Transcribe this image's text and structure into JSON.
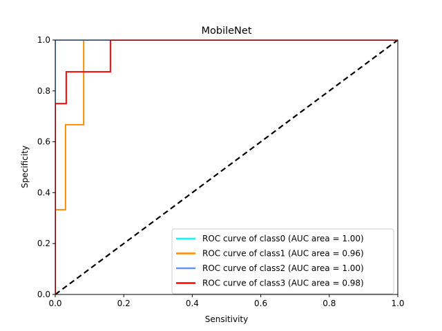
{
  "chart_data": {
    "type": "line",
    "title": "MobileNet",
    "xlabel": "Sensitivity",
    "ylabel": "Specificity",
    "xlim": [
      0,
      1
    ],
    "ylim": [
      0,
      1
    ],
    "xticks": [
      "0.0",
      "0.2",
      "0.4",
      "0.6",
      "0.8",
      "1.0"
    ],
    "yticks": [
      "0.0",
      "0.2",
      "0.4",
      "0.6",
      "0.8",
      "1.0"
    ],
    "grid": false,
    "legend_position": "lower-right",
    "series": [
      {
        "name": "ROC curve of class0 (AUC area = 1.00)",
        "color": "#00ffff",
        "points": [
          [
            0,
            0
          ],
          [
            0,
            1
          ],
          [
            1,
            1
          ]
        ]
      },
      {
        "name": "ROC curve of class1 (AUC area = 0.96)",
        "color": "#ff8c00",
        "points": [
          [
            0,
            0
          ],
          [
            0,
            0.333
          ],
          [
            0.03,
            0.333
          ],
          [
            0.03,
            0.667
          ],
          [
            0.083,
            0.667
          ],
          [
            0.083,
            1
          ],
          [
            1,
            1
          ]
        ]
      },
      {
        "name": "ROC curve of class2 (AUC area = 1.00)",
        "color": "#6495ed",
        "points": [
          [
            0,
            0
          ],
          [
            0,
            1
          ],
          [
            1,
            1
          ]
        ]
      },
      {
        "name": "ROC curve of class3 (AUC area = 0.98)",
        "color": "#ff0000",
        "points": [
          [
            0,
            0
          ],
          [
            0,
            0.75
          ],
          [
            0.032,
            0.75
          ],
          [
            0.032,
            0.875
          ],
          [
            0.161,
            0.875
          ],
          [
            0.161,
            1
          ],
          [
            1,
            1
          ]
        ]
      }
    ],
    "reference_line": {
      "color": "#000000",
      "style": "dashed",
      "points": [
        [
          0,
          0
        ],
        [
          1,
          1
        ]
      ]
    }
  }
}
